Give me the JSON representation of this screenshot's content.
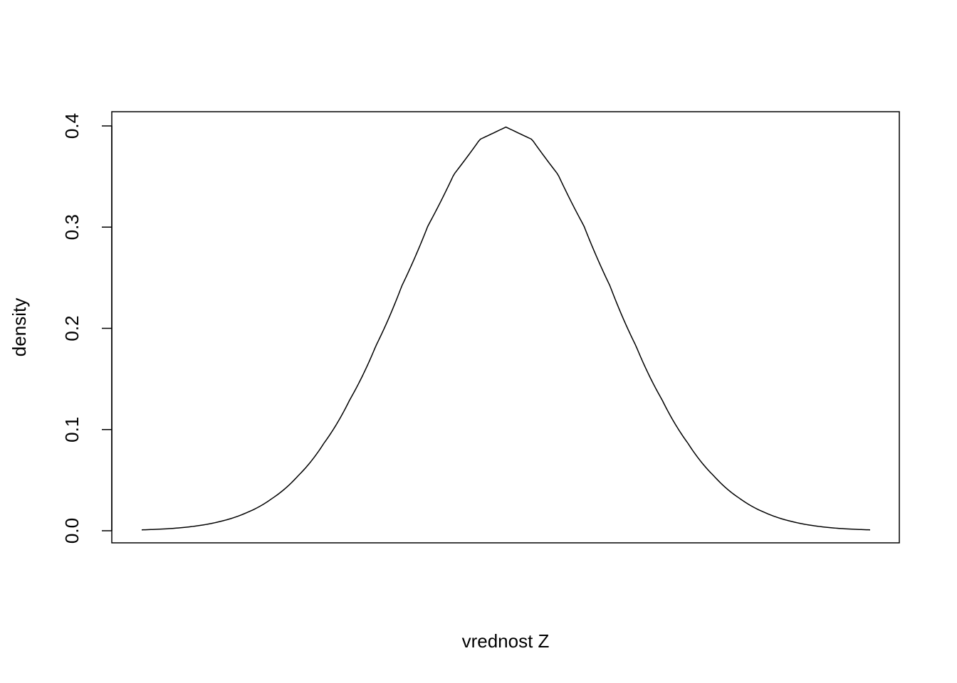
{
  "chart_data": {
    "type": "line",
    "title": "",
    "xlabel": "vrednost Z",
    "ylabel": "density",
    "xlim": [
      -3.5,
      3.5
    ],
    "ylim": [
      0,
      0.4
    ],
    "x_ticks_shown": false,
    "y_ticks": [
      "0.0",
      "0.1",
      "0.2",
      "0.3",
      "0.4"
    ],
    "y_tick_values": [
      0.0,
      0.1,
      0.2,
      0.3,
      0.4
    ],
    "grid": false,
    "legend": "none",
    "line_color": "#000000",
    "series": [
      {
        "x": [
          -3.5,
          -3.25,
          -3.0,
          -2.75,
          -2.5,
          -2.25,
          -2.0,
          -1.75,
          -1.5,
          -1.25,
          -1.0,
          -0.75,
          -0.5,
          -0.25,
          0.0,
          0.25,
          0.5,
          0.75,
          1.0,
          1.25,
          1.5,
          1.75,
          2.0,
          2.25,
          2.5,
          2.75,
          3.0,
          3.25,
          3.5
        ],
        "y": [
          0.0009,
          0.002,
          0.0044,
          0.0091,
          0.0175,
          0.0317,
          0.054,
          0.0863,
          0.1295,
          0.1826,
          0.242,
          0.3011,
          0.3521,
          0.3867,
          0.3989,
          0.3867,
          0.3521,
          0.3011,
          0.242,
          0.1826,
          0.1295,
          0.0863,
          0.054,
          0.0317,
          0.0175,
          0.0091,
          0.0044,
          0.002,
          0.0009
        ]
      }
    ]
  }
}
